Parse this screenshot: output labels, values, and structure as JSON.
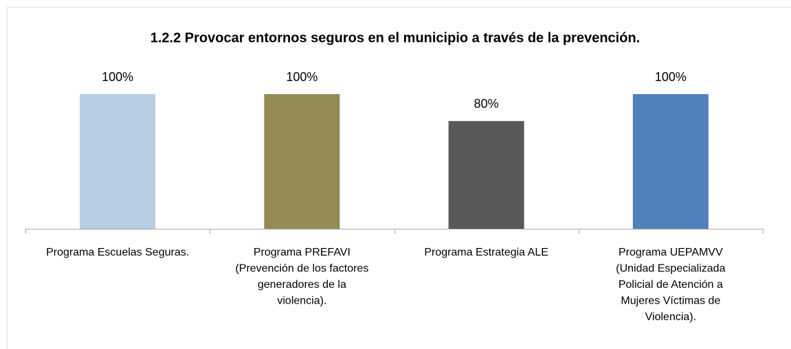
{
  "chart_data": {
    "type": "bar",
    "title": "1.2.2 Provocar entornos seguros en el municipio a través de la prevención.",
    "categories": [
      [
        "Programa Escuelas Seguras."
      ],
      [
        "Programa PREFAVI",
        "(Prevención de los factores",
        "generadores de la",
        "violencia)."
      ],
      [
        "Programa Estrategia ALE"
      ],
      [
        "Programa UEPAMVV",
        "(Unidad Especializada",
        "Policial de Atención a",
        "Mujeres Víctimas de",
        "Violencia)."
      ]
    ],
    "values": [
      100,
      100,
      80,
      100
    ],
    "value_labels": [
      "100%",
      "100%",
      "80%",
      "100%"
    ],
    "colors": [
      "#b9cde5",
      "#948a54",
      "#595959",
      "#4f81bd"
    ],
    "ylim": [
      0,
      100
    ]
  }
}
